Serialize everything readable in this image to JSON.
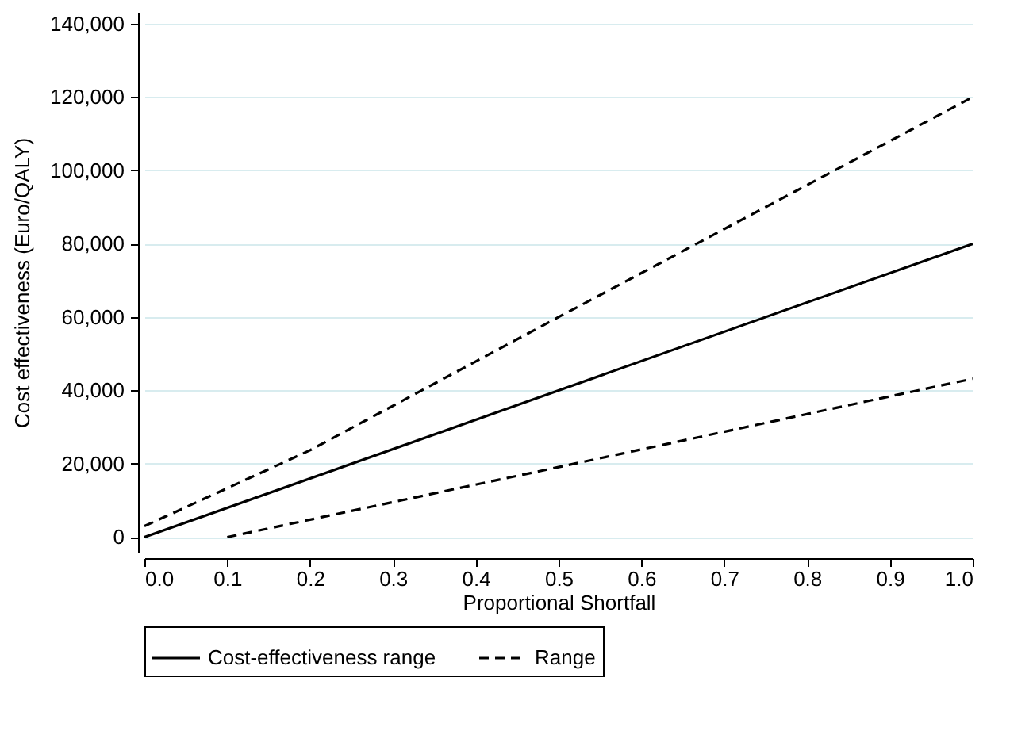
{
  "chart_data": {
    "type": "line",
    "xlabel": "Proportional Shortfall",
    "ylabel": "Cost effectiveness (Euro/QALY)",
    "xlim": [
      0,
      1
    ],
    "xticks": [
      {
        "value": 0,
        "label": "0.0"
      },
      0.1,
      0.2,
      0.3,
      0.4,
      0.5,
      0.6,
      0.7,
      0.8,
      0.9,
      {
        "value": 1,
        "label": "1.0"
      }
    ],
    "ylim": [
      -4000,
      143000
    ],
    "yticks": [
      0,
      {
        "value": 20000,
        "label": "20,000"
      },
      {
        "value": 40000,
        "label": "40,000"
      },
      {
        "value": 60000,
        "label": "60,000"
      },
      {
        "value": 80000,
        "label": "80,000"
      },
      {
        "value": 100000,
        "label": "100,000"
      },
      {
        "value": 120000,
        "label": "120,000"
      },
      {
        "value": 140000,
        "label": "140,000"
      }
    ],
    "grid": "y",
    "legend": "bottom",
    "marker": "none",
    "series": [
      {
        "name": "Cost-effectiveness range",
        "color": "#000000",
        "line_style": "solid",
        "x": [
          0,
          1
        ],
        "values": [
          0,
          80000
        ]
      },
      {
        "name": "Range",
        "color": "#000000",
        "line_style": "dashed",
        "x": [
          0,
          0.2,
          0.5,
          1
        ],
        "values": [
          3000,
          23700,
          60000,
          120000
        ]
      },
      {
        "color": "#000000",
        "line_style": "dashed",
        "x": [
          0.1,
          0.5,
          1
        ],
        "values": [
          0,
          19100,
          43200
        ]
      }
    ]
  }
}
